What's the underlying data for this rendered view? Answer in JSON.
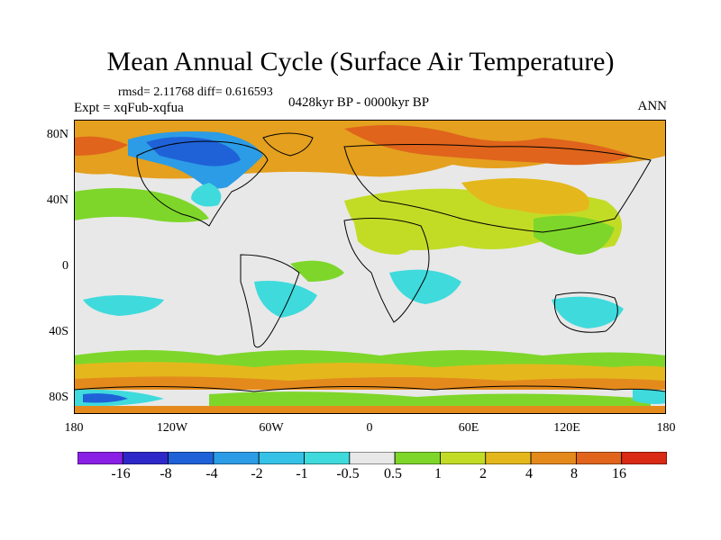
{
  "title": "Mean Annual Cycle (Surface Air Temperature)",
  "stats": "rmsd= 2.11768 diff= 0.616593",
  "experiment": "Expt = xqFub-xqfua",
  "period": "0428kyr BP - 0000kyr BP",
  "season": "ANN",
  "lat_labels": [
    "80N",
    "40N",
    "0",
    "40S",
    "80S"
  ],
  "lon_labels": [
    "180",
    "120W",
    "60W",
    "0",
    "60E",
    "120E",
    "180"
  ],
  "colorbar": {
    "labels": [
      "-16",
      "-8",
      "-4",
      "-2",
      "-1",
      "-0.5",
      "0.5",
      "1",
      "2",
      "4",
      "8",
      "16"
    ],
    "colors": [
      "#8a1fe6",
      "#2f28c8",
      "#1f62d8",
      "#2c9ce6",
      "#35c2e6",
      "#3fdadc",
      "#e8e8e8",
      "#7ed62a",
      "#c2dc26",
      "#e4b81c",
      "#e48a1c",
      "#e0641c",
      "#d82a14"
    ]
  }
}
